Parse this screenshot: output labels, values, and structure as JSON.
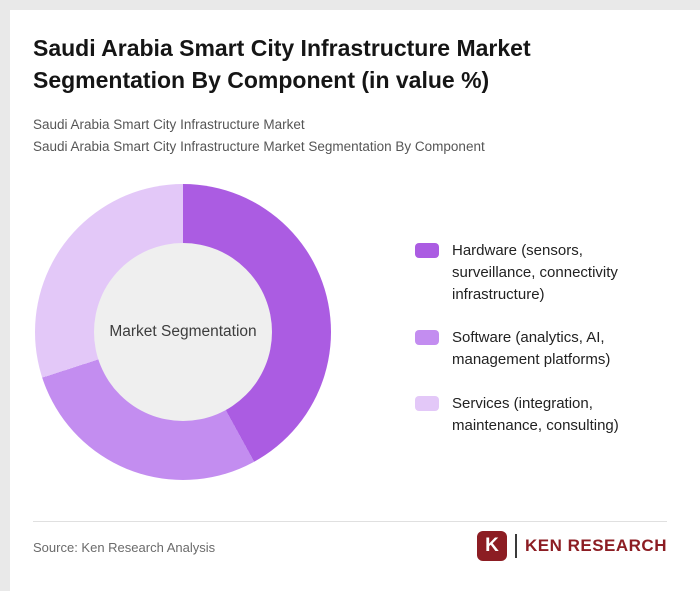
{
  "page": {
    "title": "Saudi Arabia Smart City Infrastructure Market Segmentation By Component (in value %)",
    "subtitle_line1": "Saudi Arabia Smart City Infrastructure Market",
    "subtitle_line2": "Saudi Arabia Smart City Infrastructure Market Segmentation By Component"
  },
  "chart_data": {
    "type": "pie",
    "variant": "donut",
    "title": "Saudi Arabia Smart City Infrastructure Market Segmentation By Component (in value %)",
    "center_label": "Market Segmentation",
    "unit": "value %",
    "start_angle_deg": 0,
    "direction": "clockwise",
    "legend_position": "right",
    "categories": [
      "Hardware (sensors, surveillance, connectivity infrastructure)",
      "Software (analytics, AI, management platforms)",
      "Services (integration, maintenance, consulting)"
    ],
    "values": [
      42,
      28,
      30
    ],
    "colors": [
      "#ab5ce2",
      "#c38df0",
      "#e3c8f8"
    ],
    "hole_color": "#efefef"
  },
  "legend": {
    "items": [
      {
        "label": "Hardware (sensors, surveillance, connectivity infrastructure)",
        "color": "#ab5ce2"
      },
      {
        "label": "Software (analytics, AI, management platforms)",
        "color": "#c38df0"
      },
      {
        "label": "Services (integration, maintenance, consulting)",
        "color": "#e3c8f8"
      }
    ]
  },
  "footer": {
    "source": "Source: Ken Research Analysis",
    "logo": {
      "mark": "K",
      "text": "KEN RESEARCH",
      "color": "#8c1d23"
    }
  }
}
